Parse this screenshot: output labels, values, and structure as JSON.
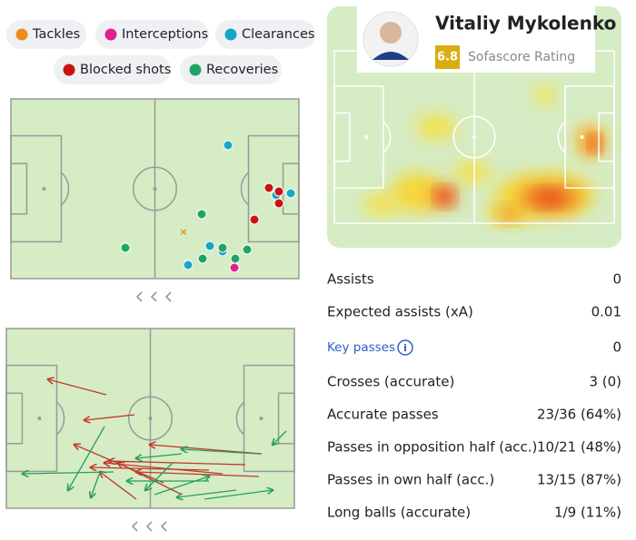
{
  "legend": [
    "Tackles",
    "Interceptions",
    "Clearances",
    "Blocked shots",
    "Recoveries"
  ],
  "player": {
    "name": "Vitaliy Mykolenko",
    "rating": "6.8",
    "rating_label": "Sofascore Rating"
  },
  "stats": [
    {
      "label": "Assists",
      "value": "0"
    },
    {
      "label": "Expected assists (xA)",
      "value": "0.01"
    },
    {
      "label": "Key passes",
      "value": "0"
    },
    {
      "label": "Crosses (accurate)",
      "value": "3 (0)"
    },
    {
      "label": "Accurate passes",
      "value": "23/36 (64%)"
    },
    {
      "label": "Passes in opposition half (acc.)",
      "value": "10/21 (48%)"
    },
    {
      "label": "Passes in own half (acc.)",
      "value": "13/15 (87%)"
    },
    {
      "label": "Long balls (accurate)",
      "value": "1/9 (11%)"
    }
  ]
}
